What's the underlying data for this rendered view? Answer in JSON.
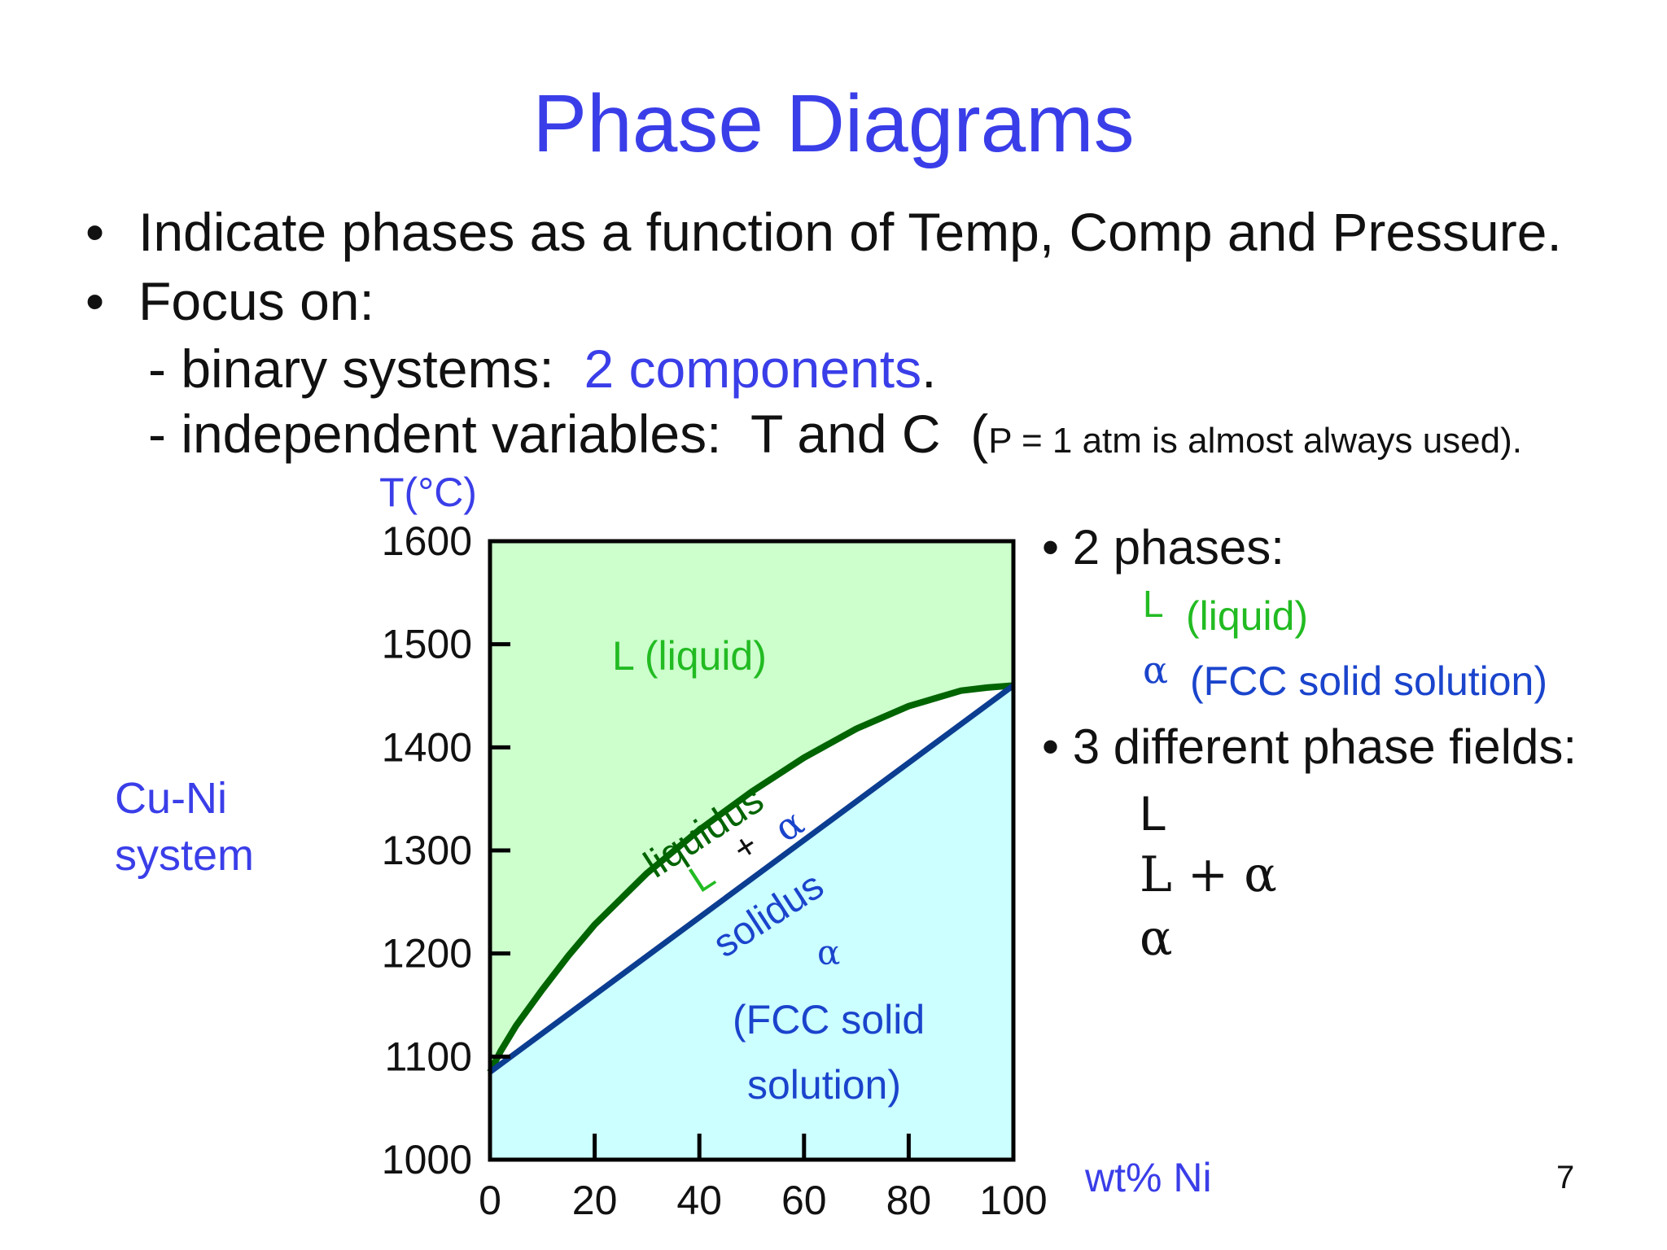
{
  "title": "Phase Diagrams",
  "bullets": {
    "b1": "Indicate phases as a function of Temp, Comp and Pressure.",
    "b2": "Focus on:",
    "sub1_prefix": "- binary systems:",
    "sub1_highlight": "2 components",
    "sub1_suffix": ".",
    "sub2_main": "- independent variables:  T and C  (",
    "sub2_small": "P = 1 atm is almost always used)."
  },
  "bullet_char": "•",
  "system_label": [
    "Cu-Ni",
    "system"
  ],
  "chart_data": {
    "type": "phase_diagram",
    "ylabel": "T(°C)",
    "xlabel": "wt% Ni",
    "xlim": [
      0,
      100
    ],
    "ylim": [
      1000,
      1600
    ],
    "x_ticks": [
      "0",
      "20",
      "40",
      "60",
      "80",
      "100"
    ],
    "y_ticks": [
      "1000",
      "1100",
      "1200",
      "1300",
      "1400",
      "1500",
      "1600"
    ],
    "regions": {
      "liquid_color": "#ccffcc",
      "solid_color": "#ccffff",
      "two_phase_color": "#ffffff"
    },
    "liquidus": {
      "name": "liquidus",
      "color": "#006400",
      "x": [
        0,
        2,
        5,
        10,
        15,
        20,
        30,
        40,
        50,
        60,
        70,
        80,
        90,
        95,
        100
      ],
      "y": [
        1085,
        1105,
        1130,
        1165,
        1198,
        1228,
        1278,
        1320,
        1357,
        1390,
        1418,
        1440,
        1455,
        1458,
        1460
      ]
    },
    "solidus": {
      "name": "solidus",
      "color": "#0b3d91",
      "x": [
        0,
        20,
        40,
        60,
        80,
        100
      ],
      "y": [
        1085,
        1160,
        1235,
        1310,
        1385,
        1460
      ]
    },
    "region_labels": {
      "liquid": "L (liquid)",
      "two_phase_L": "L",
      "two_phase_plus": "+",
      "two_phase_alpha": "α",
      "solid_alpha": "α",
      "solid_line1": "(FCC solid",
      "solid_line2": "solution)"
    }
  },
  "right_panel": {
    "phases_header": "2 phases:",
    "phase1_symbol": "L",
    "phase1_desc": "(liquid)",
    "phase2_symbol": "α",
    "phase2_desc": "(FCC solid solution)",
    "fields_header": "3 different phase fields:",
    "fields": [
      "L",
      "L + α",
      "α"
    ]
  },
  "page_number": "7"
}
